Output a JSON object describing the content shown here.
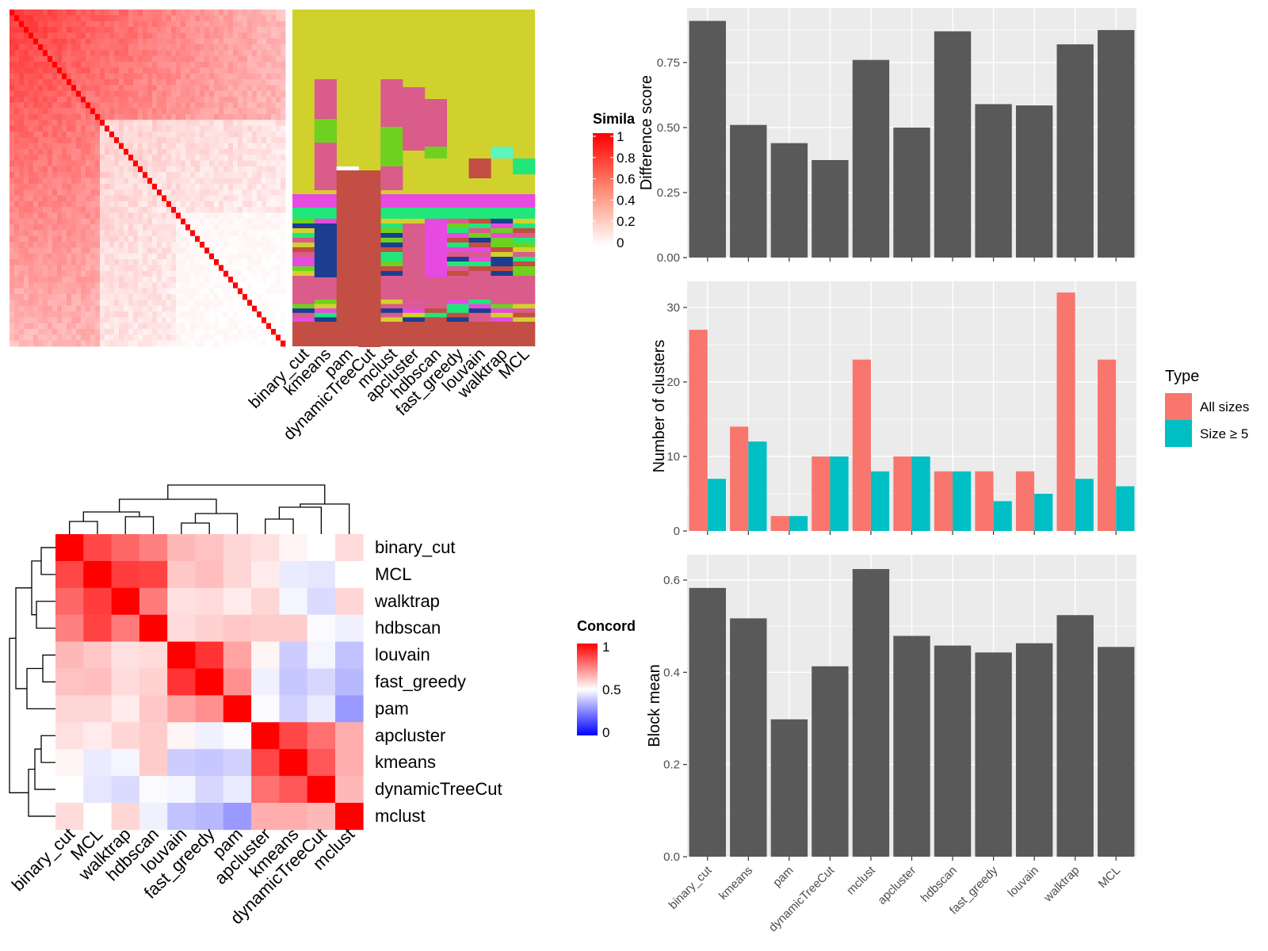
{
  "methods": [
    "binary_cut",
    "kmeans",
    "pam",
    "dynamicTreeCut",
    "mclust",
    "apcluster",
    "hdbscan",
    "fast_greedy",
    "louvain",
    "walktrap",
    "MCL"
  ],
  "colors": {
    "panel_bg": "#ebebeb",
    "bar": "#595959",
    "all_sizes": "#f8766d",
    "size_ge5": "#00bfc4",
    "sim_high": "#ff0000",
    "sim_low": "#ffffff",
    "conc_high": "#ff0000",
    "conc_mid": "#ffffff",
    "conc_low": "#0000ff",
    "class_olive": "#d1d12e",
    "class_rose": "#d95c8a",
    "class_brick": "#c24e44",
    "class_magenta": "#e64ae0",
    "class_green": "#21e67a",
    "class_navy": "#1c3d91",
    "class_lime": "#6ed11f"
  },
  "similarity_legend": {
    "title": "Simila",
    "ticks": [
      "1",
      "0.8",
      "0.6",
      "0.4",
      "0.2",
      "0"
    ]
  },
  "concordance_legend": {
    "title": "Concord",
    "ticks": [
      "1",
      "0.5",
      "0"
    ]
  },
  "concordance_order": [
    "binary_cut",
    "MCL",
    "walktrap",
    "hdbscan",
    "louvain",
    "fast_greedy",
    "pam",
    "apcluster",
    "kmeans",
    "dynamicTreeCut",
    "mclust"
  ],
  "concordance_matrix": [
    [
      1.0,
      0.86,
      0.8,
      0.75,
      0.64,
      0.62,
      0.58,
      0.56,
      0.52,
      0.5,
      0.57
    ],
    [
      0.86,
      1.0,
      0.88,
      0.87,
      0.61,
      0.63,
      0.58,
      0.54,
      0.46,
      0.45,
      0.5
    ],
    [
      0.8,
      0.88,
      1.0,
      0.76,
      0.56,
      0.57,
      0.54,
      0.58,
      0.48,
      0.43,
      0.58
    ],
    [
      0.75,
      0.87,
      0.76,
      1.0,
      0.57,
      0.59,
      0.61,
      0.6,
      0.6,
      0.49,
      0.47
    ],
    [
      0.64,
      0.61,
      0.56,
      0.57,
      1.0,
      0.9,
      0.68,
      0.52,
      0.4,
      0.48,
      0.38
    ],
    [
      0.62,
      0.63,
      0.57,
      0.59,
      0.9,
      1.0,
      0.72,
      0.47,
      0.39,
      0.42,
      0.36
    ],
    [
      0.58,
      0.58,
      0.54,
      0.61,
      0.68,
      0.72,
      1.0,
      0.49,
      0.41,
      0.46,
      0.3
    ],
    [
      0.56,
      0.54,
      0.58,
      0.6,
      0.52,
      0.47,
      0.49,
      1.0,
      0.86,
      0.78,
      0.66
    ],
    [
      0.52,
      0.46,
      0.48,
      0.6,
      0.4,
      0.39,
      0.41,
      0.86,
      1.0,
      0.83,
      0.66
    ],
    [
      0.5,
      0.45,
      0.43,
      0.49,
      0.48,
      0.42,
      0.46,
      0.78,
      0.83,
      1.0,
      0.64
    ],
    [
      0.57,
      0.5,
      0.58,
      0.47,
      0.38,
      0.36,
      0.3,
      0.66,
      0.66,
      0.64,
      1.0
    ]
  ],
  "chart_data": [
    {
      "type": "bar",
      "categories": [
        "binary_cut",
        "kmeans",
        "pam",
        "dynamicTreeCut",
        "mclust",
        "apcluster",
        "hdbscan",
        "fast_greedy",
        "louvain",
        "walktrap",
        "MCL"
      ],
      "values": [
        0.91,
        0.51,
        0.44,
        0.375,
        0.76,
        0.5,
        0.87,
        0.59,
        0.585,
        0.82,
        0.875
      ],
      "xlabel": "",
      "ylabel": "Difference score",
      "ylim": [
        0,
        0.96
      ],
      "yticks": [
        "0.00",
        "0.25",
        "0.50",
        "0.75"
      ],
      "grid": true
    },
    {
      "type": "bar",
      "categories": [
        "binary_cut",
        "kmeans",
        "pam",
        "dynamicTreeCut",
        "mclust",
        "apcluster",
        "hdbscan",
        "fast_greedy",
        "louvain",
        "walktrap",
        "MCL"
      ],
      "series": [
        {
          "name": "All sizes",
          "values": [
            27,
            14,
            2,
            10,
            23,
            10,
            8,
            8,
            8,
            32,
            23
          ]
        },
        {
          "name": "Size ≥ 5",
          "values": [
            7,
            12,
            2,
            10,
            8,
            10,
            8,
            4,
            5,
            7,
            6
          ]
        }
      ],
      "xlabel": "",
      "ylabel": "Number of clusters",
      "ylim": [
        0,
        33.5
      ],
      "yticks": [
        "0",
        "10",
        "20",
        "30"
      ],
      "legend": {
        "title": "Type",
        "position": "right"
      },
      "grid": true
    },
    {
      "type": "bar",
      "categories": [
        "binary_cut",
        "kmeans",
        "pam",
        "dynamicTreeCut",
        "mclust",
        "apcluster",
        "hdbscan",
        "fast_greedy",
        "louvain",
        "walktrap",
        "MCL"
      ],
      "values": [
        0.583,
        0.517,
        0.298,
        0.413,
        0.624,
        0.479,
        0.458,
        0.443,
        0.463,
        0.524,
        0.455
      ],
      "xlabel": "",
      "ylabel": "Block mean",
      "ylim": [
        0,
        0.655
      ],
      "yticks": [
        "0.0",
        "0.2",
        "0.4",
        "0.6"
      ],
      "grid": true
    }
  ]
}
